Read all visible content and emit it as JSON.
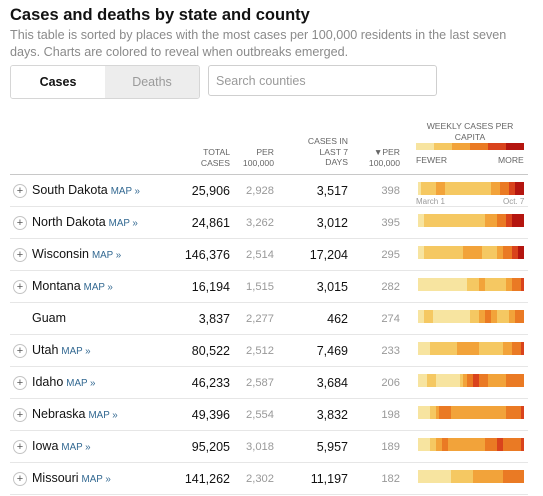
{
  "title": "Cases and deaths by state and county",
  "subtitle": "This table is sorted by places with the most cases per 100,000 residents in the last seven days. Charts are colored to reveal when outbreaks emerged.",
  "tabs": [
    {
      "label": "Cases",
      "active": true
    },
    {
      "label": "Deaths",
      "active": false
    }
  ],
  "search": {
    "placeholder": "Search counties",
    "value": ""
  },
  "columns": {
    "total": "Total cases",
    "per": "Per 100,000",
    "last7": "Cases in last 7 days",
    "per7": "▼Per 100,000"
  },
  "legend": {
    "title": "Weekly cases per capita",
    "fewer": "Fewer",
    "more": "More",
    "colors": [
      "#f7e4a0",
      "#f5c862",
      "#f2a33a",
      "#ea7a24",
      "#d9431c",
      "#b4150f"
    ]
  },
  "axis": {
    "start": "March 1",
    "end": "Oct. 7"
  },
  "map_label": "MAP »",
  "rows": [
    {
      "name": "South Dakota",
      "map": true,
      "total": "25,906",
      "per": "2,928",
      "last7": "3,517",
      "per7": "398",
      "weekly": [
        0,
        1,
        1,
        1,
        1,
        1,
        2,
        2,
        2,
        1,
        1,
        1,
        1,
        1,
        1,
        1,
        1,
        1,
        1,
        1,
        1,
        1,
        1,
        1,
        2,
        2,
        2,
        3,
        3,
        3,
        4,
        4,
        5,
        5,
        5
      ]
    },
    {
      "name": "North Dakota",
      "map": true,
      "total": "24,861",
      "per": "3,262",
      "last7": "3,012",
      "per7": "395",
      "weekly": [
        0,
        0,
        1,
        1,
        1,
        1,
        1,
        1,
        1,
        1,
        1,
        1,
        1,
        1,
        1,
        1,
        1,
        1,
        1,
        1,
        1,
        1,
        2,
        2,
        2,
        2,
        3,
        3,
        3,
        4,
        4,
        5,
        5,
        5,
        5
      ]
    },
    {
      "name": "Wisconsin",
      "map": true,
      "total": "146,376",
      "per": "2,514",
      "last7": "17,204",
      "per7": "295",
      "weekly": [
        0,
        0,
        1,
        1,
        1,
        1,
        1,
        1,
        1,
        1,
        1,
        1,
        1,
        1,
        1,
        2,
        2,
        2,
        2,
        2,
        2,
        1,
        1,
        1,
        1,
        1,
        2,
        2,
        3,
        3,
        3,
        4,
        4,
        5,
        5
      ]
    },
    {
      "name": "Montana",
      "map": true,
      "total": "16,194",
      "per": "1,515",
      "last7": "3,015",
      "per7": "282",
      "weekly": [
        0,
        0,
        0,
        0,
        0,
        0,
        0,
        0,
        0,
        0,
        0,
        0,
        0,
        0,
        0,
        0,
        1,
        1,
        1,
        1,
        2,
        2,
        1,
        1,
        1,
        1,
        1,
        1,
        1,
        2,
        2,
        3,
        3,
        3,
        4
      ]
    },
    {
      "name": "Guam",
      "map": false,
      "total": "3,837",
      "per": "2,277",
      "last7": "462",
      "per7": "274",
      "weekly": [
        0,
        0,
        1,
        1,
        1,
        0,
        0,
        0,
        0,
        0,
        0,
        0,
        0,
        0,
        0,
        0,
        0,
        1,
        1,
        1,
        2,
        2,
        3,
        3,
        2,
        2,
        1,
        1,
        1,
        1,
        2,
        2,
        3,
        3,
        3
      ]
    },
    {
      "name": "Utah",
      "map": true,
      "total": "80,522",
      "per": "2,512",
      "last7": "7,469",
      "per7": "233",
      "weekly": [
        0,
        0,
        0,
        0,
        1,
        1,
        1,
        1,
        1,
        1,
        1,
        1,
        1,
        2,
        2,
        2,
        2,
        2,
        2,
        2,
        1,
        1,
        1,
        1,
        1,
        1,
        1,
        1,
        2,
        2,
        2,
        3,
        3,
        3,
        4
      ]
    },
    {
      "name": "Idaho",
      "map": true,
      "total": "46,233",
      "per": "2,587",
      "last7": "3,684",
      "per7": "206",
      "weekly": [
        0,
        0,
        0,
        1,
        1,
        1,
        0,
        0,
        0,
        0,
        0,
        0,
        0,
        0,
        1,
        2,
        3,
        3,
        4,
        4,
        3,
        3,
        3,
        2,
        2,
        2,
        2,
        2,
        2,
        3,
        3,
        3,
        3,
        3,
        3
      ]
    },
    {
      "name": "Nebraska",
      "map": true,
      "total": "49,396",
      "per": "2,554",
      "last7": "3,832",
      "per7": "198",
      "weekly": [
        0,
        0,
        0,
        0,
        1,
        1,
        2,
        3,
        3,
        3,
        3,
        2,
        2,
        2,
        2,
        2,
        2,
        2,
        2,
        2,
        2,
        2,
        2,
        2,
        2,
        2,
        2,
        2,
        2,
        3,
        3,
        3,
        3,
        3,
        4
      ]
    },
    {
      "name": "Iowa",
      "map": true,
      "total": "95,205",
      "per": "3,018",
      "last7": "5,957",
      "per7": "189",
      "weekly": [
        0,
        0,
        0,
        0,
        1,
        1,
        2,
        2,
        3,
        3,
        2,
        2,
        2,
        2,
        2,
        2,
        2,
        2,
        2,
        2,
        2,
        2,
        3,
        3,
        3,
        3,
        4,
        4,
        3,
        3,
        3,
        3,
        3,
        3,
        4
      ]
    },
    {
      "name": "Missouri",
      "map": true,
      "total": "141,262",
      "per": "2,302",
      "last7": "11,197",
      "per7": "182",
      "weekly": [
        0,
        0,
        0,
        0,
        0,
        0,
        0,
        0,
        0,
        0,
        0,
        1,
        1,
        1,
        1,
        1,
        1,
        1,
        2,
        2,
        2,
        2,
        2,
        2,
        2,
        2,
        2,
        2,
        3,
        3,
        3,
        3,
        3,
        3,
        3
      ]
    }
  ]
}
